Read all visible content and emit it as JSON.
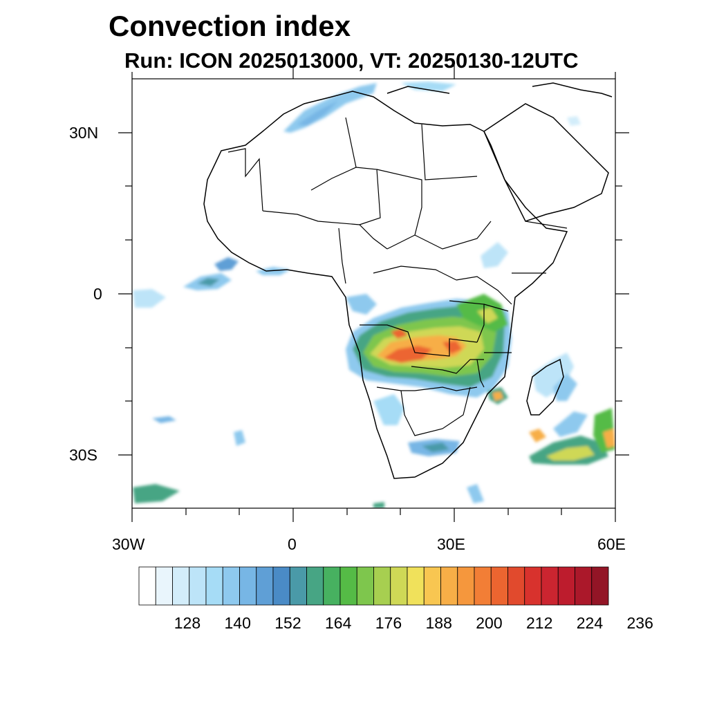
{
  "title": "Convection index",
  "subtitle": "Run: ICON 2025013000,  VT: 20250130-12UTC",
  "lat_labels": [
    "30N",
    "0",
    "30S"
  ],
  "lon_labels": [
    "30W",
    "0",
    "30E",
    "60E"
  ],
  "colorbar": {
    "labels": [
      "128",
      "140",
      "152",
      "164",
      "176",
      "188",
      "200",
      "212",
      "224",
      "236"
    ],
    "colors": [
      "#ffffff",
      "#e9f5fc",
      "#d3edfa",
      "#bde4f8",
      "#a6dcf6",
      "#8ec9ee",
      "#77b6e5",
      "#5f9fd6",
      "#4a8bc6",
      "#4a9aa8",
      "#47a584",
      "#47b160",
      "#55bb46",
      "#7ec64d",
      "#a7cf50",
      "#cfd856",
      "#f0e15b",
      "#f8c651",
      "#f7ae47",
      "#f5973d",
      "#f27e36",
      "#ec6530",
      "#e14a2d",
      "#d8322d",
      "#cb2530",
      "#bd1c2d",
      "#ab182a",
      "#931526"
    ]
  },
  "chart_data": {
    "type": "heatmap",
    "title": "Convection index",
    "subtitle": "Run: ICON 2025013000,  VT: 20250130-12UTC",
    "xlim": [
      -30,
      60
    ],
    "ylim": [
      -40,
      40
    ],
    "x_ticks": [
      "30W",
      "0",
      "30E",
      "60E"
    ],
    "y_ticks": [
      "30N",
      "0",
      "30S"
    ],
    "colorbar_ticks": [
      128,
      140,
      152,
      164,
      176,
      188,
      200,
      212,
      224,
      236
    ]
  }
}
